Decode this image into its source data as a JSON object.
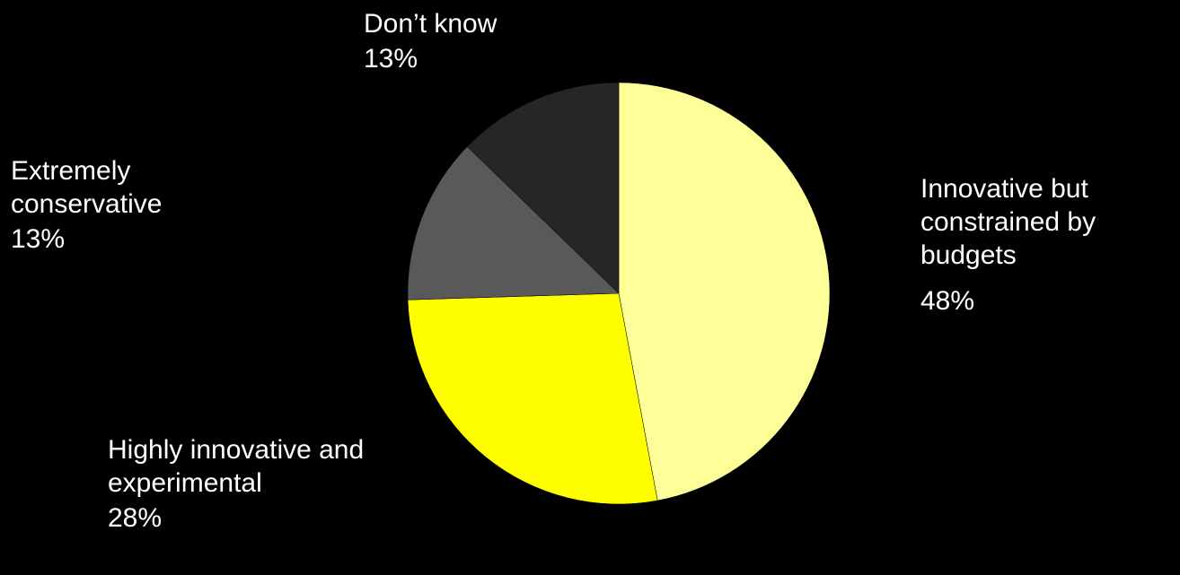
{
  "chart_data": {
    "type": "pie",
    "categories": [
      "Innovative but constrained by budgets",
      "Highly innovative and experimental",
      "Extremely conservative",
      "Don’t know"
    ],
    "values": [
      48,
      28,
      13,
      13
    ],
    "value_labels": [
      "48%",
      "28%",
      "13%",
      "13%"
    ],
    "colors": [
      "#ffff99",
      "#ffff00",
      "#595959",
      "#262626"
    ]
  }
}
